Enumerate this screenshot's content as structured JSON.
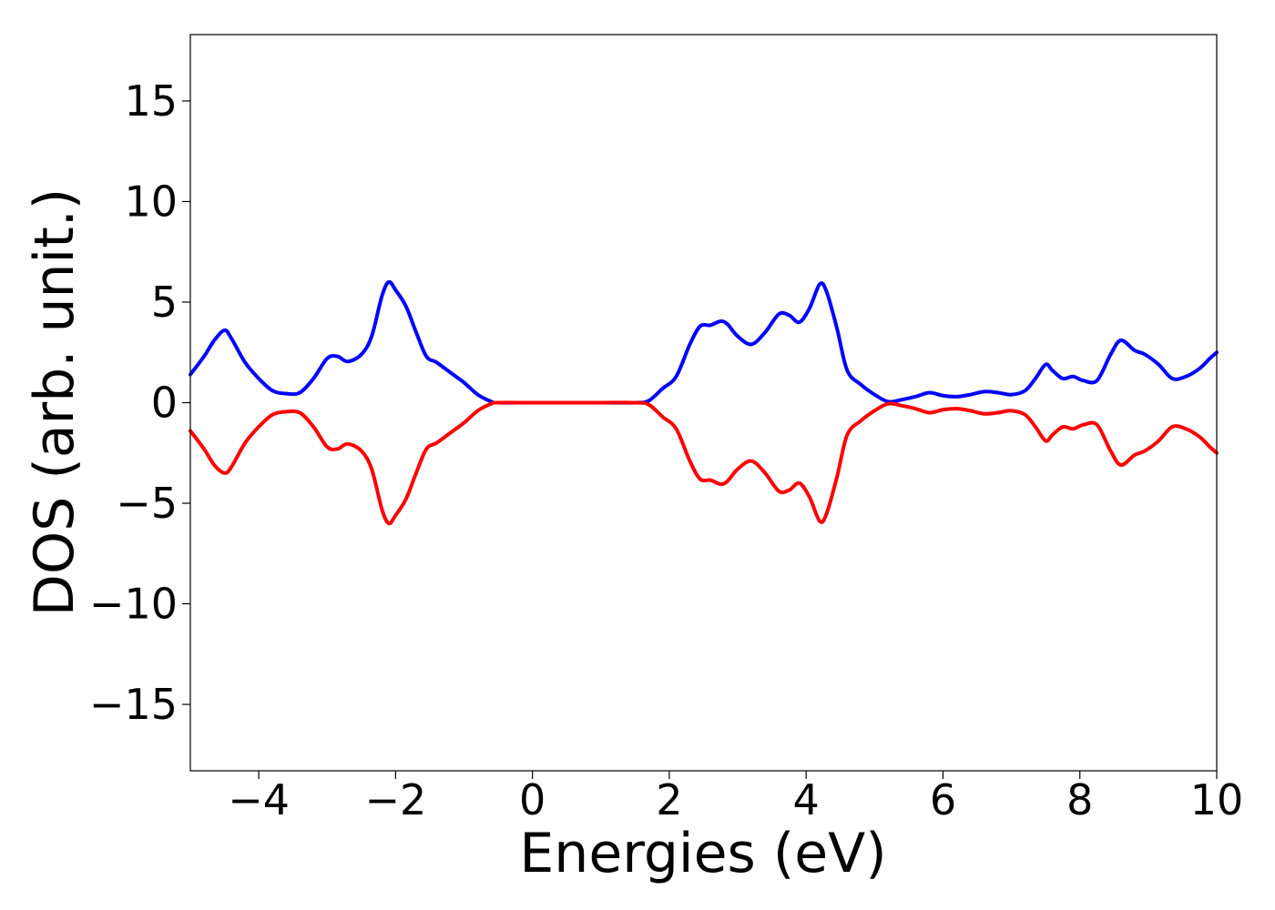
{
  "chart_data": {
    "type": "line",
    "title": "",
    "xlabel": "Energies (eV)",
    "ylabel": "DOS (arb. unit.)",
    "xlim": [
      -5,
      10
    ],
    "ylim": [
      -18.3,
      18.3
    ],
    "x_ticks": [
      -4,
      -2,
      0,
      2,
      4,
      6,
      8,
      10
    ],
    "x_tick_labels": [
      "−4",
      "−2",
      "0",
      "2",
      "4",
      "6",
      "8",
      "10"
    ],
    "y_ticks": [
      15,
      10,
      5,
      0,
      -5,
      -10,
      -15
    ],
    "y_tick_labels": [
      "15",
      "10",
      "5",
      "0",
      "−5",
      "−10",
      "−15"
    ],
    "grid": false,
    "legend": "none",
    "series": [
      {
        "color": "#0000ff",
        "x": [
          -5.0,
          -4.8,
          -4.65,
          -4.5,
          -4.4,
          -4.2,
          -4.0,
          -3.8,
          -3.6,
          -3.4,
          -3.2,
          -3.0,
          -2.85,
          -2.7,
          -2.5,
          -2.35,
          -2.2,
          -2.1,
          -2.0,
          -1.85,
          -1.7,
          -1.55,
          -1.4,
          -1.2,
          -1.0,
          -0.8,
          -0.6,
          -0.5,
          0.0,
          0.5,
          1.0,
          1.5,
          1.7,
          1.9,
          2.1,
          2.3,
          2.45,
          2.6,
          2.75,
          2.85,
          3.0,
          3.2,
          3.4,
          3.6,
          3.75,
          3.9,
          4.05,
          4.2,
          4.3,
          4.45,
          4.6,
          4.8,
          5.0,
          5.2,
          5.4,
          5.6,
          5.8,
          6.0,
          6.2,
          6.4,
          6.6,
          6.8,
          7.0,
          7.2,
          7.35,
          7.5,
          7.6,
          7.75,
          7.9,
          8.05,
          8.25,
          8.45,
          8.6,
          8.8,
          8.95,
          9.15,
          9.35,
          9.55,
          9.75,
          9.9,
          10.0
        ],
        "y": [
          1.4,
          2.3,
          3.1,
          3.6,
          3.2,
          2.0,
          1.2,
          0.6,
          0.45,
          0.5,
          1.2,
          2.2,
          2.3,
          2.05,
          2.4,
          3.3,
          5.3,
          6.0,
          5.6,
          4.8,
          3.5,
          2.3,
          2.0,
          1.5,
          1.0,
          0.4,
          0.05,
          0.0,
          0.0,
          0.0,
          0.0,
          0.0,
          0.1,
          0.7,
          1.3,
          2.9,
          3.8,
          3.85,
          4.05,
          3.9,
          3.3,
          2.9,
          3.5,
          4.4,
          4.35,
          4.0,
          4.7,
          5.9,
          5.5,
          3.7,
          1.6,
          0.9,
          0.4,
          0.05,
          0.15,
          0.3,
          0.5,
          0.35,
          0.3,
          0.4,
          0.55,
          0.5,
          0.4,
          0.6,
          1.2,
          1.9,
          1.6,
          1.2,
          1.3,
          1.1,
          1.1,
          2.4,
          3.1,
          2.6,
          2.4,
          1.9,
          1.2,
          1.3,
          1.7,
          2.2,
          2.5
        ]
      },
      {
        "color": "#ff0000",
        "x": [
          -5.0,
          -4.8,
          -4.65,
          -4.5,
          -4.4,
          -4.2,
          -4.0,
          -3.8,
          -3.6,
          -3.4,
          -3.2,
          -3.0,
          -2.85,
          -2.7,
          -2.5,
          -2.35,
          -2.2,
          -2.1,
          -2.0,
          -1.85,
          -1.7,
          -1.55,
          -1.4,
          -1.2,
          -1.0,
          -0.8,
          -0.6,
          -0.5,
          0.0,
          0.5,
          1.0,
          1.5,
          1.7,
          1.9,
          2.1,
          2.3,
          2.45,
          2.6,
          2.75,
          2.85,
          3.0,
          3.2,
          3.4,
          3.6,
          3.75,
          3.9,
          4.05,
          4.2,
          4.3,
          4.45,
          4.6,
          4.8,
          5.0,
          5.2,
          5.4,
          5.6,
          5.8,
          6.0,
          6.2,
          6.4,
          6.6,
          6.8,
          7.0,
          7.2,
          7.35,
          7.5,
          7.6,
          7.75,
          7.9,
          8.05,
          8.25,
          8.45,
          8.6,
          8.8,
          8.95,
          9.15,
          9.35,
          9.55,
          9.75,
          9.9,
          10.0
        ],
        "y": [
          -1.4,
          -2.3,
          -3.1,
          -3.5,
          -3.2,
          -2.0,
          -1.2,
          -0.6,
          -0.45,
          -0.5,
          -1.2,
          -2.2,
          -2.3,
          -2.05,
          -2.4,
          -3.3,
          -5.3,
          -6.0,
          -5.6,
          -4.8,
          -3.5,
          -2.3,
          -2.0,
          -1.5,
          -1.0,
          -0.4,
          -0.05,
          0.0,
          0.0,
          0.0,
          0.0,
          0.0,
          -0.1,
          -0.7,
          -1.3,
          -2.9,
          -3.8,
          -3.85,
          -4.05,
          -3.9,
          -3.3,
          -2.9,
          -3.5,
          -4.4,
          -4.35,
          -4.0,
          -4.7,
          -5.9,
          -5.5,
          -3.7,
          -1.6,
          -0.9,
          -0.4,
          -0.05,
          -0.15,
          -0.3,
          -0.5,
          -0.35,
          -0.3,
          -0.4,
          -0.55,
          -0.5,
          -0.4,
          -0.6,
          -1.2,
          -1.9,
          -1.6,
          -1.2,
          -1.3,
          -1.1,
          -1.1,
          -2.4,
          -3.1,
          -2.6,
          -2.4,
          -1.9,
          -1.2,
          -1.3,
          -1.7,
          -2.2,
          -2.5
        ]
      }
    ]
  }
}
